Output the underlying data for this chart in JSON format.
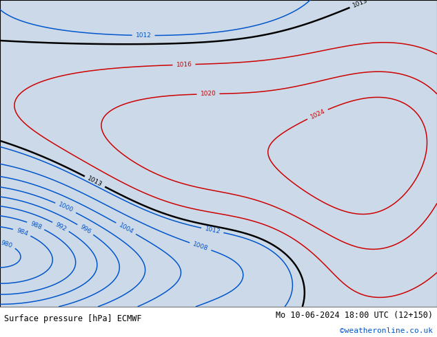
{
  "title_left": "Surface pressure [hPa] ECMWF",
  "title_right": "Mo 10-06-2024 18:00 UTC (12+150)",
  "copyright": "©weatheronline.co.uk",
  "bg_color": "#ccd9e8",
  "land_color": "#b8e896",
  "fig_width": 6.34,
  "fig_height": 4.9,
  "dpi": 100,
  "map_extent": [
    95,
    185,
    -68,
    12
  ],
  "footer_color": "#000000",
  "copyright_color": "#0055cc",
  "blue_color": "#0055cc",
  "red_color": "#cc0000",
  "black_color": "#000000",
  "levels_blue": [
    980,
    984,
    988,
    992,
    996,
    1000,
    1004,
    1008,
    1012
  ],
  "levels_red": [
    1016,
    1020,
    1024
  ],
  "levels_black": [
    1013
  ],
  "gaussians_neg": [
    {
      "lon0": 92,
      "lat0": -53,
      "amp": 32,
      "slon": 18,
      "slat": 14
    },
    {
      "lon0": 118,
      "lat0": -58,
      "amp": 10,
      "slon": 18,
      "slat": 10
    },
    {
      "lon0": 148,
      "lat0": -56,
      "amp": 5,
      "slon": 12,
      "slat": 10
    },
    {
      "lon0": 130,
      "lat0": 8,
      "amp": 5,
      "slon": 25,
      "slat": 12
    }
  ],
  "gaussians_pos": [
    {
      "lon0": 132,
      "lat0": -26,
      "amp": 10,
      "slon": 28,
      "slat": 20
    },
    {
      "lon0": 170,
      "lat0": -36,
      "amp": 9,
      "slon": 14,
      "slat": 20
    },
    {
      "lon0": 178,
      "lat0": -20,
      "amp": 5,
      "slon": 10,
      "slat": 12
    }
  ],
  "base_pressure": 1013.0
}
